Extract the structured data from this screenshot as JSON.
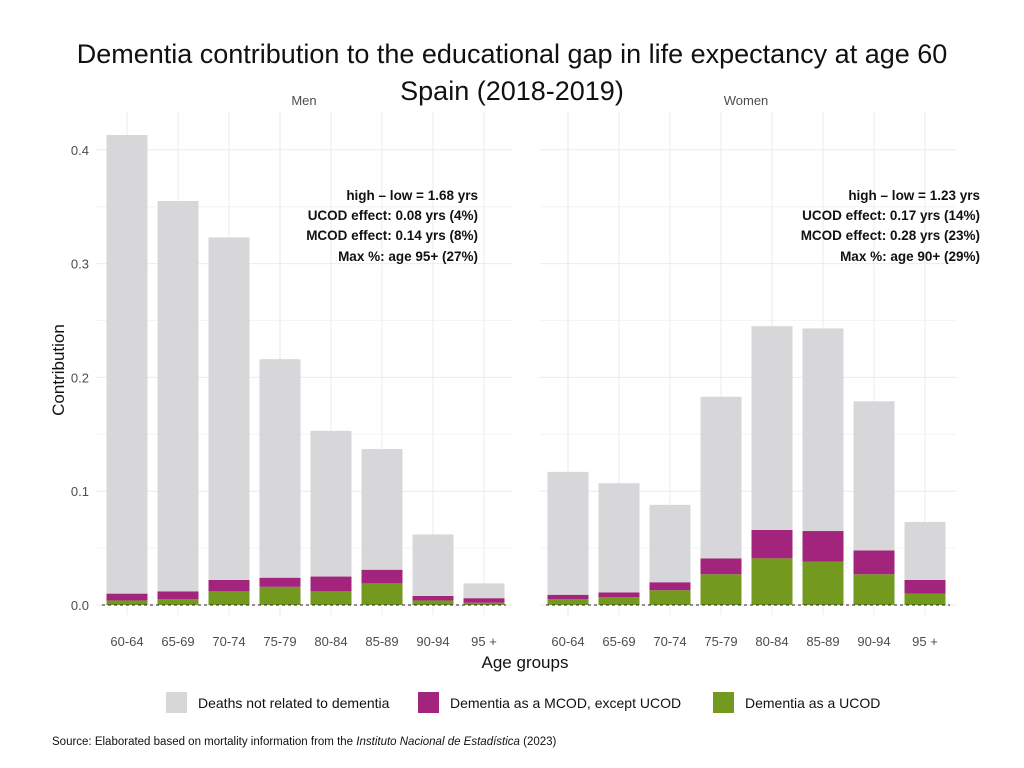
{
  "title": {
    "line1": "Dementia contribution to the educational gap in life expectancy at age 60",
    "line2": "Spain (2018-2019)"
  },
  "source": {
    "prefix": "Source: Elaborated based on mortality information from the",
    "institution": "Instituto Nacional de Estadística",
    "suffix": "(2023)"
  },
  "colors": {
    "not_dementia": "#d7d6d8",
    "mcod": "#a3247c",
    "ucod": "#73991f",
    "grid": "#ebebeb",
    "text": "#4d4d4d"
  },
  "chart_data": {
    "type": "bar",
    "stacked": true,
    "ylabel": "Contribution",
    "xlabel": "Age groups",
    "ylim": [
      0,
      0.42
    ],
    "yticks": [
      0.0,
      0.1,
      0.2,
      0.3,
      0.4
    ],
    "ytick_labels": [
      "0.0",
      "0.1",
      "0.2",
      "0.3",
      "0.4"
    ],
    "categories": [
      "60-64",
      "65-69",
      "70-74",
      "75-79",
      "80-84",
      "85-89",
      "90-94",
      "95 +"
    ],
    "legend": [
      {
        "key": "not_dementia",
        "label": "Deaths not related to dementia"
      },
      {
        "key": "mcod",
        "label": "Dementia as a MCOD, except UCOD"
      },
      {
        "key": "ucod",
        "label": "Dementia as a UCOD"
      }
    ],
    "panels": [
      {
        "name": "Men",
        "annotations": [
          "high – low = 1.68 yrs",
          "UCOD effect: 0.08 yrs (4%)",
          "MCOD effect: 0.14 yrs (8%)",
          "Max %: age 95+ (27%)"
        ],
        "series": [
          {
            "name": "Dementia as a UCOD",
            "key": "ucod",
            "values": [
              0.004,
              0.005,
              0.012,
              0.016,
              0.012,
              0.019,
              0.004,
              0.002
            ]
          },
          {
            "name": "Dementia as a MCOD, except UCOD",
            "key": "mcod",
            "values": [
              0.006,
              0.007,
              0.01,
              0.008,
              0.013,
              0.012,
              0.004,
              0.004
            ]
          },
          {
            "name": "Deaths not related to dementia",
            "key": "not_dementia",
            "values": [
              0.403,
              0.343,
              0.301,
              0.192,
              0.128,
              0.106,
              0.054,
              0.013
            ]
          }
        ],
        "totals": [
          0.413,
          0.355,
          0.323,
          0.216,
          0.153,
          0.137,
          0.062,
          0.019
        ]
      },
      {
        "name": "Women",
        "annotations": [
          "high – low = 1.23 yrs",
          "UCOD effect: 0.17 yrs (14%)",
          "MCOD effect: 0.28 yrs (23%)",
          "Max %: age 90+ (29%)"
        ],
        "series": [
          {
            "name": "Dementia as a UCOD",
            "key": "ucod",
            "values": [
              0.005,
              0.007,
              0.013,
              0.027,
              0.041,
              0.038,
              0.027,
              0.01
            ]
          },
          {
            "name": "Dementia as a MCOD, except UCOD",
            "key": "mcod",
            "values": [
              0.004,
              0.004,
              0.007,
              0.014,
              0.025,
              0.027,
              0.021,
              0.012
            ]
          },
          {
            "name": "Deaths not related to dementia",
            "key": "not_dementia",
            "values": [
              0.108,
              0.096,
              0.068,
              0.142,
              0.179,
              0.178,
              0.131,
              0.051
            ]
          }
        ],
        "totals": [
          0.117,
          0.107,
          0.088,
          0.183,
          0.245,
          0.243,
          0.179,
          0.073
        ]
      }
    ]
  }
}
